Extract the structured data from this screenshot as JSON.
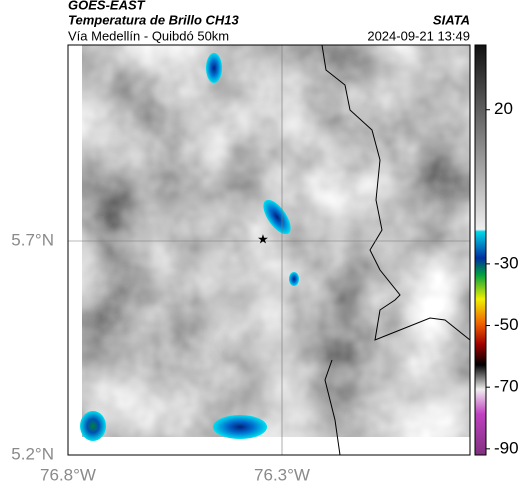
{
  "header": {
    "title": "GOES-EAST",
    "subtitle": "Temperatura de Brillo CH13",
    "route": "Vía Medellín - Quibdó 50km",
    "source": "SIATA",
    "datetime": "2024-09-21 13:49"
  },
  "map": {
    "lat_labels": [
      "5.7°N",
      "5.2°N"
    ],
    "lon_labels": [
      "76.8°W",
      "76.3°W"
    ]
  },
  "colorbar": {
    "clim": [
      -92,
      41
    ],
    "ticks": [
      20,
      -30,
      -50,
      -70,
      -90
    ]
  }
}
